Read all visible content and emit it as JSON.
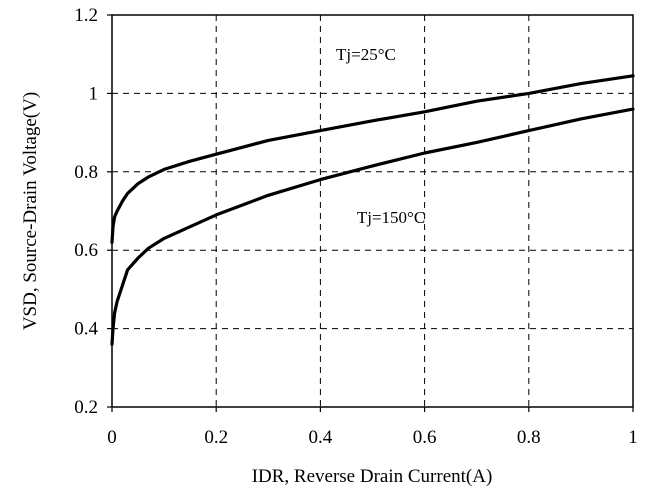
{
  "chart_data": {
    "type": "line",
    "title": "",
    "xlabel": "IDR, Reverse Drain Current(A)",
    "ylabel": "VSD, Source-Drain Voltage(V)",
    "xlim": [
      0,
      1
    ],
    "ylim": [
      0.2,
      1.2
    ],
    "x_ticks": [
      0,
      0.2,
      0.4,
      0.6,
      0.8,
      1
    ],
    "x_tick_labels": [
      "0",
      "0.2",
      "0.4",
      "0.6",
      "0.8",
      "1"
    ],
    "y_ticks": [
      0.2,
      0.4,
      0.6,
      0.8,
      1.0,
      1.2
    ],
    "y_tick_labels": [
      "0.2",
      "0.4",
      "0.6",
      "0.8",
      "1",
      "1.2"
    ],
    "grid": true,
    "series": [
      {
        "name": "Tj=25°C",
        "x": [
          0,
          0.002,
          0.005,
          0.01,
          0.02,
          0.03,
          0.05,
          0.07,
          0.1,
          0.15,
          0.2,
          0.3,
          0.4,
          0.5,
          0.6,
          0.7,
          0.8,
          0.9,
          1.0
        ],
        "y": [
          0.62,
          0.66,
          0.685,
          0.7,
          0.725,
          0.745,
          0.77,
          0.787,
          0.806,
          0.827,
          0.845,
          0.88,
          0.905,
          0.93,
          0.953,
          0.98,
          1.0,
          1.025,
          1.045
        ]
      },
      {
        "name": "Tj=150°C",
        "x": [
          0,
          0.002,
          0.005,
          0.01,
          0.02,
          0.03,
          0.05,
          0.07,
          0.1,
          0.15,
          0.2,
          0.3,
          0.4,
          0.5,
          0.6,
          0.7,
          0.8,
          0.9,
          1.0
        ],
        "y": [
          0.36,
          0.4,
          0.44,
          0.47,
          0.51,
          0.55,
          0.58,
          0.605,
          0.63,
          0.66,
          0.69,
          0.74,
          0.78,
          0.815,
          0.848,
          0.875,
          0.905,
          0.935,
          0.96
        ]
      }
    ],
    "annotations": [
      {
        "name": "Tj=25°C",
        "text": "Tj=25°C",
        "x": 0.43,
        "y": 1.085
      },
      {
        "name": "Tj=150°C",
        "text": "Tj=150°C",
        "x": 0.47,
        "y": 0.67
      }
    ]
  }
}
